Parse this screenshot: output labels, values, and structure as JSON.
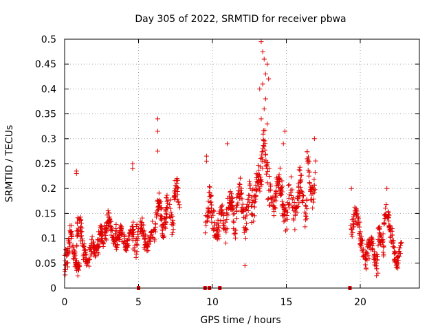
{
  "chart_data": {
    "type": "scatter",
    "title": "Day 305 of 2022, SRMTID for receiver pbwa",
    "xlabel": "GPS time / hours",
    "ylabel": "SRMTID / TECUs",
    "xlim": [
      0,
      24
    ],
    "ylim": [
      0,
      0.5
    ],
    "xticks": [
      0,
      5,
      10,
      15,
      20
    ],
    "xtick_labels": [
      "0",
      "5",
      "10",
      "15",
      "20"
    ],
    "yticks": [
      0,
      0.05,
      0.1,
      0.15,
      0.2,
      0.25,
      0.3,
      0.35,
      0.4,
      0.45,
      0.5
    ],
    "ytick_labels": [
      "0",
      "0.05",
      "0.1",
      "0.15",
      "0.2",
      "0.25",
      "0.3",
      "0.35",
      "0.4",
      "0.45",
      "0.5"
    ],
    "grid": true,
    "marker": "plus",
    "color": "#e00000",
    "gap_markers_x": [
      5.0,
      9.5,
      9.8,
      10.5,
      19.3
    ],
    "segments": [
      {
        "x_start": 0.0,
        "x_end": 0.5,
        "base": 0.08,
        "amp": 0.03,
        "noise": 0.04,
        "count": 45
      },
      {
        "x_start": 0.5,
        "x_end": 1.0,
        "base": 0.06,
        "amp": 0.02,
        "noise": 0.025,
        "count": 45
      },
      {
        "x_start": 0.8,
        "x_end": 1.3,
        "base": 0.1,
        "amp": 0.03,
        "noise": 0.05,
        "count": 40
      },
      {
        "x_start": 1.3,
        "x_end": 2.0,
        "base": 0.07,
        "amp": 0.02,
        "noise": 0.025,
        "count": 55
      },
      {
        "x_start": 2.0,
        "x_end": 2.6,
        "base": 0.09,
        "amp": 0.02,
        "noise": 0.03,
        "count": 50
      },
      {
        "x_start": 2.6,
        "x_end": 3.5,
        "base": 0.12,
        "amp": 0.02,
        "noise": 0.03,
        "count": 70
      },
      {
        "x_start": 3.5,
        "x_end": 4.6,
        "base": 0.1,
        "amp": 0.015,
        "noise": 0.025,
        "count": 80
      },
      {
        "x_start": 4.6,
        "x_end": 5.0,
        "base": 0.11,
        "amp": 0.02,
        "noise": 0.04,
        "count": 30
      },
      {
        "x_start": 5.1,
        "x_end": 6.0,
        "base": 0.1,
        "amp": 0.02,
        "noise": 0.03,
        "count": 60
      },
      {
        "x_start": 6.0,
        "x_end": 6.6,
        "base": 0.14,
        "amp": 0.03,
        "noise": 0.04,
        "count": 45
      },
      {
        "x_start": 6.6,
        "x_end": 7.4,
        "base": 0.15,
        "amp": 0.03,
        "noise": 0.035,
        "count": 55
      },
      {
        "x_start": 7.4,
        "x_end": 7.8,
        "base": 0.18,
        "amp": 0.02,
        "noise": 0.035,
        "count": 30
      },
      {
        "x_start": 9.5,
        "x_end": 10.0,
        "base": 0.15,
        "amp": 0.03,
        "noise": 0.05,
        "count": 35
      },
      {
        "x_start": 10.0,
        "x_end": 10.8,
        "base": 0.13,
        "amp": 0.02,
        "noise": 0.04,
        "count": 55
      },
      {
        "x_start": 10.8,
        "x_end": 11.6,
        "base": 0.15,
        "amp": 0.03,
        "noise": 0.045,
        "count": 55
      },
      {
        "x_start": 11.6,
        "x_end": 12.5,
        "base": 0.16,
        "amp": 0.03,
        "noise": 0.045,
        "count": 60
      },
      {
        "x_start": 12.5,
        "x_end": 13.2,
        "base": 0.19,
        "amp": 0.03,
        "noise": 0.045,
        "count": 50
      },
      {
        "x_start": 13.2,
        "x_end": 13.9,
        "base": 0.24,
        "amp": 0.05,
        "noise": 0.06,
        "count": 50
      },
      {
        "x_start": 13.9,
        "x_end": 14.6,
        "base": 0.19,
        "amp": 0.03,
        "noise": 0.04,
        "count": 50
      },
      {
        "x_start": 14.6,
        "x_end": 15.6,
        "base": 0.17,
        "amp": 0.03,
        "noise": 0.045,
        "count": 65
      },
      {
        "x_start": 15.6,
        "x_end": 16.4,
        "base": 0.18,
        "amp": 0.03,
        "noise": 0.045,
        "count": 55
      },
      {
        "x_start": 16.4,
        "x_end": 17.0,
        "base": 0.22,
        "amp": 0.04,
        "noise": 0.045,
        "count": 40
      },
      {
        "x_start": 19.3,
        "x_end": 20.0,
        "base": 0.13,
        "amp": 0.02,
        "noise": 0.035,
        "count": 45
      },
      {
        "x_start": 20.0,
        "x_end": 20.6,
        "base": 0.08,
        "amp": 0.02,
        "noise": 0.03,
        "count": 45
      },
      {
        "x_start": 20.6,
        "x_end": 21.2,
        "base": 0.07,
        "amp": 0.02,
        "noise": 0.03,
        "count": 45
      },
      {
        "x_start": 21.2,
        "x_end": 21.6,
        "base": 0.09,
        "amp": 0.02,
        "noise": 0.035,
        "count": 30
      },
      {
        "x_start": 21.6,
        "x_end": 22.2,
        "base": 0.13,
        "amp": 0.02,
        "noise": 0.03,
        "count": 45
      },
      {
        "x_start": 22.2,
        "x_end": 22.8,
        "base": 0.07,
        "amp": 0.02,
        "noise": 0.025,
        "count": 45
      }
    ],
    "notable_points": [
      {
        "x": 13.3,
        "y": 0.495
      },
      {
        "x": 13.4,
        "y": 0.475
      },
      {
        "x": 13.5,
        "y": 0.46
      },
      {
        "x": 13.7,
        "y": 0.45
      },
      {
        "x": 13.6,
        "y": 0.43
      },
      {
        "x": 13.8,
        "y": 0.42
      },
      {
        "x": 13.4,
        "y": 0.41
      },
      {
        "x": 13.2,
        "y": 0.4
      },
      {
        "x": 13.6,
        "y": 0.38
      },
      {
        "x": 13.5,
        "y": 0.36
      },
      {
        "x": 13.3,
        "y": 0.34
      },
      {
        "x": 13.7,
        "y": 0.33
      },
      {
        "x": 6.3,
        "y": 0.34
      },
      {
        "x": 6.3,
        "y": 0.315
      },
      {
        "x": 6.3,
        "y": 0.275
      },
      {
        "x": 4.6,
        "y": 0.25
      },
      {
        "x": 4.6,
        "y": 0.24
      },
      {
        "x": 9.6,
        "y": 0.265
      },
      {
        "x": 9.6,
        "y": 0.255
      },
      {
        "x": 11.0,
        "y": 0.29
      },
      {
        "x": 14.9,
        "y": 0.315
      },
      {
        "x": 14.8,
        "y": 0.29
      },
      {
        "x": 16.9,
        "y": 0.3
      },
      {
        "x": 0.8,
        "y": 0.235
      },
      {
        "x": 0.8,
        "y": 0.23
      },
      {
        "x": 12.2,
        "y": 0.045
      },
      {
        "x": 21.2,
        "y": 0.03
      },
      {
        "x": 21.1,
        "y": 0.025
      },
      {
        "x": 21.8,
        "y": 0.2
      },
      {
        "x": 19.4,
        "y": 0.2
      }
    ]
  }
}
